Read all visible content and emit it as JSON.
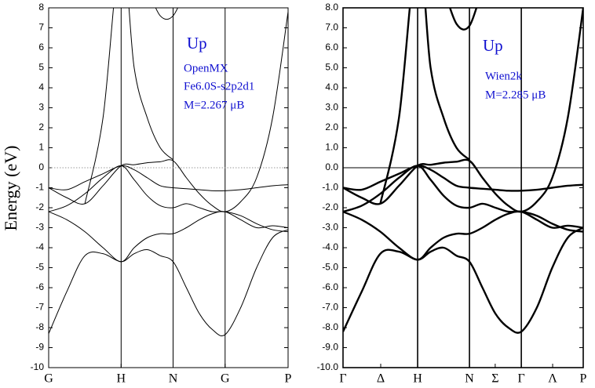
{
  "y_label": "Energy (eV)",
  "chart_data": [
    {
      "type": "line",
      "annotations": [
        "Up",
        "OpenMX",
        "Fe6.0S-s2p2d1",
        "M=2.267 μB"
      ],
      "xlim": [
        0,
        3.304
      ],
      "xticks": [
        {
          "value": 0,
          "label": "G"
        },
        {
          "value": 1,
          "label": "H"
        },
        {
          "value": 1.717,
          "label": "N"
        },
        {
          "value": 2.435,
          "label": "G"
        },
        {
          "value": 3.304,
          "label": "P"
        }
      ],
      "vlines": [
        1,
        1.717,
        2.435
      ],
      "fermi_level": 0,
      "fermi_style": "dotted",
      "ylim": [
        -10,
        8
      ],
      "yticks": [
        8,
        7,
        6,
        5,
        4,
        3,
        2,
        1,
        0,
        -1,
        -2,
        -3,
        -4,
        -5,
        -6,
        -7,
        -8,
        -9,
        -10
      ],
      "x": [
        0,
        0.25,
        0.5,
        0.75,
        1,
        1.18,
        1.36,
        1.54,
        1.717,
        1.9,
        2.08,
        2.26,
        2.435,
        2.65,
        2.87,
        3.09,
        3.304
      ],
      "line_width": 1,
      "color": "#000000",
      "series": [
        {
          "values": [
            -8.3,
            -6.2,
            -4.4,
            -4.3,
            -4.7,
            -4.3,
            -4.1,
            -4.4,
            -4.7,
            -6.0,
            -7.3,
            -8.1,
            -8.35,
            -7.0,
            -5.0,
            -3.5,
            -3.1
          ]
        },
        {
          "values": [
            -2.2,
            -2.6,
            -3.2,
            -4.0,
            -4.7,
            -4.0,
            -3.5,
            -3.3,
            -3.3,
            -3.0,
            -2.6,
            -2.3,
            -2.2,
            -2.6,
            -3.0,
            -2.9,
            -3.0
          ]
        },
        {
          "values": [
            -2.2,
            -1.9,
            -1.3,
            -0.5,
            0.1,
            -0.6,
            -1.4,
            -1.9,
            -2.0,
            -1.8,
            -2.0,
            -2.2,
            -2.2,
            -2.4,
            -2.8,
            -3.1,
            -3.2
          ]
        },
        {
          "values": [
            -1.0,
            -1.5,
            -1.8,
            -0.9,
            0.1,
            0.15,
            0.25,
            0.3,
            0.35,
            -0.5,
            -1.3,
            -1.9,
            -2.2,
            -1.7,
            -0.5,
            2.5,
            7.8
          ]
        },
        {
          "values": [
            -1.0,
            -1.1,
            -0.7,
            -0.3,
            0.1,
            -0.1,
            -0.5,
            -0.9,
            -1.0,
            -1.05,
            -1.1,
            -1.15,
            -1.15,
            -1.1,
            -1.0,
            -0.9,
            -0.85
          ]
        },
        {
          "values": [
            null,
            null,
            -1.8,
            2.5,
            11,
            5,
            2.5,
            1.0,
            0.4,
            null,
            null,
            null,
            null,
            null,
            null,
            null,
            null
          ]
        },
        {
          "values": [
            null,
            null,
            null,
            null,
            null,
            null,
            9,
            7.6,
            7.6,
            9,
            null,
            null,
            null,
            null,
            null,
            null,
            null
          ]
        }
      ]
    },
    {
      "type": "line",
      "annotations": [
        "Up",
        "Wien2k",
        "M=2.285 μB"
      ],
      "xlim": [
        0,
        3.22
      ],
      "xticks": [
        {
          "value": 0,
          "label": "Γ"
        },
        {
          "value": 0.505,
          "label": "Δ"
        },
        {
          "value": 1,
          "label": "H"
        },
        {
          "value": 1.695,
          "label": "N"
        },
        {
          "value": 2.04,
          "label": "Σ"
        },
        {
          "value": 2.39,
          "label": "Γ"
        },
        {
          "value": 2.81,
          "label": "Λ"
        },
        {
          "value": 3.22,
          "label": "P"
        }
      ],
      "vlines": [
        1,
        1.695,
        2.39
      ],
      "fermi_level": 0,
      "fermi_style": "solid",
      "ylim": [
        -10,
        8
      ],
      "yticks": [
        {
          "value": 8,
          "label": "8.0"
        },
        {
          "value": 7,
          "label": "7.0"
        },
        {
          "value": 6,
          "label": "6.0"
        },
        {
          "value": 5,
          "label": "5.0"
        },
        {
          "value": 4,
          "label": "4.0"
        },
        {
          "value": 3,
          "label": "3.0"
        },
        {
          "value": 2,
          "label": "2.0"
        },
        {
          "value": 1,
          "label": "1.0"
        },
        {
          "value": 0,
          "label": "0.0"
        },
        {
          "value": -1,
          "label": "-1.0"
        },
        {
          "value": -2,
          "label": "-2.0"
        },
        {
          "value": -3,
          "label": "-3.0"
        },
        {
          "value": -4,
          "label": "-4.0"
        },
        {
          "value": -5,
          "label": "-5.0"
        },
        {
          "value": -6,
          "label": "-6.0"
        },
        {
          "value": -7,
          "label": "-7.0"
        },
        {
          "value": -8,
          "label": "-8.0"
        },
        {
          "value": -9,
          "label": "-9.0"
        },
        {
          "value": -10,
          "label": "-10.0"
        }
      ],
      "x": [
        0,
        0.25,
        0.5,
        0.75,
        1,
        1.174,
        1.348,
        1.521,
        1.695,
        1.869,
        2.043,
        2.216,
        2.39,
        2.598,
        2.805,
        3.013,
        3.22
      ],
      "line_width": 2.4,
      "color": "#000000",
      "series": [
        {
          "values": [
            -8.2,
            -6.2,
            -4.3,
            -4.2,
            -4.6,
            -4.2,
            -4.0,
            -4.4,
            -4.7,
            -6.0,
            -7.3,
            -8.0,
            -8.2,
            -7.0,
            -5.0,
            -3.5,
            -3.0
          ]
        },
        {
          "values": [
            -2.2,
            -2.6,
            -3.2,
            -4.0,
            -4.6,
            -4.0,
            -3.5,
            -3.3,
            -3.3,
            -3.0,
            -2.6,
            -2.3,
            -2.2,
            -2.6,
            -3.0,
            -2.9,
            -3.0
          ]
        },
        {
          "values": [
            -2.2,
            -1.9,
            -1.3,
            -0.5,
            0.1,
            -0.6,
            -1.4,
            -1.9,
            -2.0,
            -1.8,
            -2.0,
            -2.2,
            -2.2,
            -2.4,
            -2.8,
            -3.1,
            -3.2
          ]
        },
        {
          "values": [
            -1.0,
            -1.5,
            -1.8,
            -0.9,
            0.1,
            0.15,
            0.25,
            0.3,
            0.35,
            -0.5,
            -1.3,
            -1.9,
            -2.2,
            -1.7,
            -0.5,
            2.5,
            8.0
          ]
        },
        {
          "values": [
            -1.0,
            -1.1,
            -0.7,
            -0.3,
            0.1,
            -0.1,
            -0.5,
            -0.9,
            -1.0,
            -1.05,
            -1.1,
            -1.15,
            -1.15,
            -1.1,
            -1.0,
            -0.9,
            -0.85
          ]
        },
        {
          "values": [
            null,
            null,
            -1.8,
            2.5,
            11,
            5,
            2.5,
            1.0,
            0.4,
            null,
            null,
            null,
            null,
            null,
            null,
            null,
            null
          ]
        },
        {
          "values": [
            null,
            null,
            null,
            null,
            null,
            null,
            9,
            7.2,
            7.1,
            9,
            null,
            null,
            null,
            null,
            null,
            null,
            null
          ]
        }
      ]
    }
  ]
}
